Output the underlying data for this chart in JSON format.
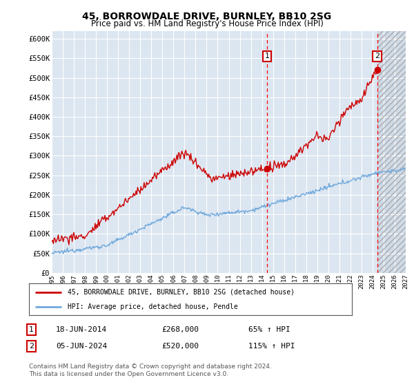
{
  "title": "45, BORROWDALE DRIVE, BURNLEY, BB10 2SG",
  "subtitle": "Price paid vs. HM Land Registry's House Price Index (HPI)",
  "ylabel_values": [
    "£0",
    "£50K",
    "£100K",
    "£150K",
    "£200K",
    "£250K",
    "£300K",
    "£350K",
    "£400K",
    "£450K",
    "£500K",
    "£550K",
    "£600K"
  ],
  "ylim": [
    0,
    620000
  ],
  "yticks": [
    0,
    50000,
    100000,
    150000,
    200000,
    250000,
    300000,
    350000,
    400000,
    450000,
    500000,
    550000,
    600000
  ],
  "xlim_start": 1995,
  "xlim_end": 2027,
  "xtick_years": [
    1995,
    1996,
    1997,
    1998,
    1999,
    2000,
    2001,
    2002,
    2003,
    2004,
    2005,
    2006,
    2007,
    2008,
    2009,
    2010,
    2011,
    2012,
    2013,
    2014,
    2015,
    2016,
    2017,
    2018,
    2019,
    2020,
    2021,
    2022,
    2023,
    2024,
    2025,
    2026,
    2027
  ],
  "hpi_color": "#6fa8dc",
  "price_color": "#cc0000",
  "marker1_date": 2014.46,
  "marker2_date": 2024.43,
  "marker1_price": 268000,
  "marker2_price": 520000,
  "legend_line1": "45, BORROWDALE DRIVE, BURNLEY, BB10 2SG (detached house)",
  "legend_line2": "HPI: Average price, detached house, Pendle",
  "footnote": "Contains HM Land Registry data © Crown copyright and database right 2024.\nThis data is licensed under the Open Government Licence v3.0.",
  "bg_color": "#dce6f1",
  "future_shade_start": 2024.43
}
